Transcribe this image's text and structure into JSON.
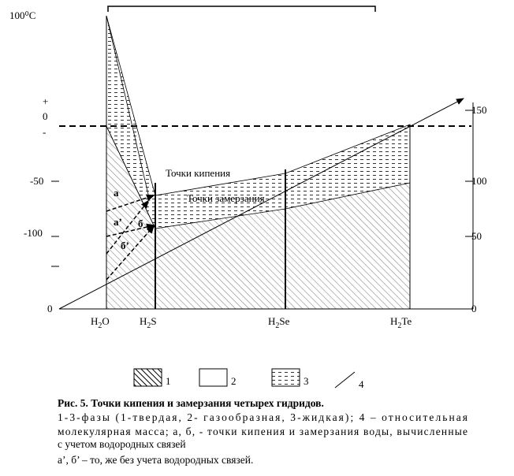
{
  "figure": {
    "y_unit": "100⁰C",
    "left_labels": [
      "+",
      "0",
      "-",
      "-50",
      "-100",
      "0"
    ],
    "right_labels": [
      "150",
      "100",
      "50",
      "0"
    ],
    "compounds": [
      [
        "H",
        "2",
        "O"
      ],
      [
        "H",
        "2",
        "S"
      ],
      [
        "H",
        "2",
        "Se"
      ],
      [
        "H",
        "2",
        "Te"
      ]
    ],
    "boiling_label": "Точки кипения",
    "freezing_label": "Точки замерзания",
    "points": [
      "а",
      "а’",
      "б",
      "б’"
    ],
    "legend": [
      "1",
      "2",
      "3",
      "4"
    ]
  },
  "caption": {
    "title": "Рис. 5. Точки кипения и замерзания четырех гидридов.",
    "lines": [
      "1-3-фазы (1-твердая, 2- газообразная, 3-жидкая); 4 – относительная",
      "молекулярная масса; а, б, - точки кипения и замерзания воды, вычисленные",
      "с учетом водородных связей",
      "а’, б’ – то, же без учета водородных связей."
    ]
  }
}
